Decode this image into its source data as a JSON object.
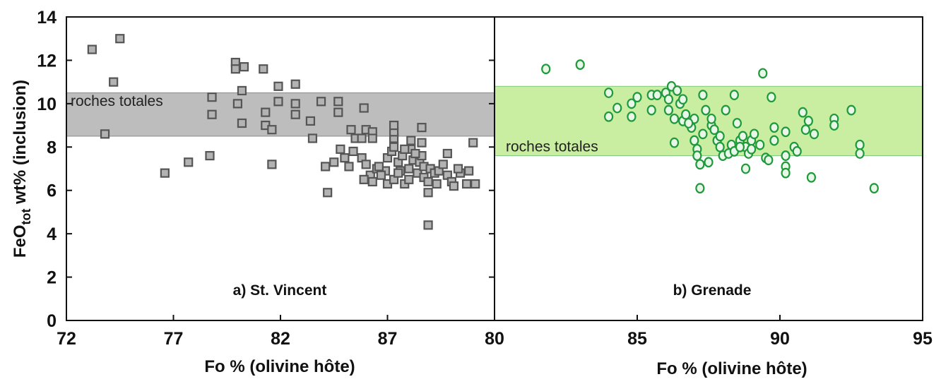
{
  "figure": {
    "ylabel": {
      "main": "FeO",
      "sub": "tot",
      "rest": " wt% (inclusion)"
    }
  },
  "chart_data": [
    {
      "type": "scatter",
      "panel_label": "a) St. Vincent",
      "xlabel": "Fo % (olivine hôte)",
      "xlim": [
        72,
        92
      ],
      "ylim": [
        0,
        14
      ],
      "x_ticks": [
        "72",
        "77",
        "82",
        "87"
      ],
      "y_ticks": [
        "0",
        "2",
        "4",
        "6",
        "8",
        "10",
        "12",
        "14"
      ],
      "marker": "square",
      "marker_color": "#555555",
      "marker_fill": "#b3b3b3",
      "band": {
        "label": "roches totales",
        "y_range": [
          8.5,
          10.5
        ],
        "color": "#bdbdbd"
      },
      "points": [
        [
          73.2,
          12.5
        ],
        [
          74.5,
          13.0
        ],
        [
          74.2,
          11.0
        ],
        [
          73.8,
          8.6
        ],
        [
          76.6,
          6.8
        ],
        [
          77.7,
          7.3
        ],
        [
          78.7,
          7.6
        ],
        [
          78.8,
          10.3
        ],
        [
          78.8,
          9.5
        ],
        [
          79.9,
          11.9
        ],
        [
          79.9,
          11.6
        ],
        [
          80.3,
          11.7
        ],
        [
          80.0,
          10.0
        ],
        [
          80.2,
          10.6
        ],
        [
          80.2,
          9.1
        ],
        [
          81.2,
          11.6
        ],
        [
          81.3,
          9.6
        ],
        [
          81.3,
          9.0
        ],
        [
          81.6,
          8.8
        ],
        [
          81.6,
          7.2
        ],
        [
          81.9,
          10.8
        ],
        [
          81.9,
          10.1
        ],
        [
          82.7,
          10.9
        ],
        [
          82.7,
          10.0
        ],
        [
          82.7,
          9.5
        ],
        [
          83.4,
          9.2
        ],
        [
          83.5,
          8.4
        ],
        [
          83.9,
          10.1
        ],
        [
          84.7,
          10.1
        ],
        [
          84.7,
          9.6
        ],
        [
          84.1,
          7.1
        ],
        [
          84.2,
          5.9
        ],
        [
          84.5,
          7.3
        ],
        [
          84.8,
          7.9
        ],
        [
          85.0,
          7.5
        ],
        [
          85.2,
          7.1
        ],
        [
          85.3,
          8.8
        ],
        [
          85.4,
          7.8
        ],
        [
          85.5,
          8.4
        ],
        [
          85.8,
          8.4
        ],
        [
          85.9,
          9.8
        ],
        [
          86.0,
          8.8
        ],
        [
          86.3,
          8.7
        ],
        [
          86.3,
          8.4
        ],
        [
          85.8,
          7.5
        ],
        [
          86.0,
          7.2
        ],
        [
          86.2,
          6.7
        ],
        [
          86.5,
          7.0
        ],
        [
          86.9,
          6.9
        ],
        [
          85.9,
          6.5
        ],
        [
          86.3,
          6.4
        ],
        [
          86.7,
          6.7
        ],
        [
          87.0,
          6.3
        ],
        [
          87.3,
          6.5
        ],
        [
          87.0,
          7.5
        ],
        [
          87.2,
          7.8
        ],
        [
          87.3,
          8.0
        ],
        [
          87.3,
          8.4
        ],
        [
          87.3,
          8.7
        ],
        [
          87.3,
          9.0
        ],
        [
          87.5,
          7.3
        ],
        [
          87.6,
          6.9
        ],
        [
          87.7,
          7.6
        ],
        [
          87.8,
          6.3
        ],
        [
          88.0,
          7.0
        ],
        [
          88.0,
          6.5
        ],
        [
          88.1,
          7.9
        ],
        [
          88.1,
          8.3
        ],
        [
          88.2,
          7.4
        ],
        [
          88.4,
          6.8
        ],
        [
          88.5,
          7.3
        ],
        [
          88.6,
          8.2
        ],
        [
          88.6,
          7.6
        ],
        [
          88.6,
          8.9
        ],
        [
          88.7,
          6.6
        ],
        [
          88.7,
          7.1
        ],
        [
          88.9,
          6.4
        ],
        [
          88.9,
          5.9
        ],
        [
          88.9,
          4.4
        ],
        [
          89.0,
          7.0
        ],
        [
          89.2,
          6.8
        ],
        [
          89.4,
          6.9
        ],
        [
          89.6,
          7.2
        ],
        [
          89.8,
          7.7
        ],
        [
          89.8,
          6.7
        ],
        [
          90.0,
          6.4
        ],
        [
          90.1,
          6.2
        ],
        [
          90.4,
          6.8
        ],
        [
          90.7,
          6.3
        ],
        [
          90.8,
          6.9
        ],
        [
          91.0,
          8.2
        ],
        [
          91.1,
          6.3
        ],
        [
          86.6,
          7.1
        ],
        [
          87.8,
          7.9
        ],
        [
          88.3,
          7.7
        ],
        [
          89.3,
          6.3
        ],
        [
          90.3,
          7.0
        ],
        [
          87.5,
          6.8
        ]
      ]
    },
    {
      "type": "scatter",
      "panel_label": "b) Grenade",
      "xlabel": "Fo % (olivine hôte)",
      "xlim": [
        80,
        95
      ],
      "ylim": [
        0,
        14
      ],
      "x_ticks": [
        "80",
        "85",
        "90",
        "95"
      ],
      "y_ticks": [],
      "marker": "circle",
      "marker_color": "#1e9a3a",
      "marker_fill": "#e9f7e9",
      "band": {
        "label": "roches totales",
        "y_range": [
          7.6,
          10.8
        ],
        "color": "#c9eea2"
      },
      "points": [
        [
          81.8,
          11.6
        ],
        [
          83.0,
          11.8
        ],
        [
          89.4,
          11.4
        ],
        [
          84.0,
          10.5
        ],
        [
          84.0,
          9.4
        ],
        [
          84.3,
          9.8
        ],
        [
          84.8,
          9.4
        ],
        [
          84.8,
          10.0
        ],
        [
          85.0,
          10.3
        ],
        [
          85.5,
          9.7
        ],
        [
          85.5,
          10.4
        ],
        [
          85.7,
          10.4
        ],
        [
          86.0,
          10.5
        ],
        [
          86.1,
          10.2
        ],
        [
          86.1,
          9.7
        ],
        [
          86.2,
          10.8
        ],
        [
          86.3,
          9.3
        ],
        [
          86.3,
          8.2
        ],
        [
          86.4,
          10.6
        ],
        [
          86.5,
          10.0
        ],
        [
          86.6,
          10.2
        ],
        [
          86.6,
          9.2
        ],
        [
          86.7,
          9.5
        ],
        [
          86.9,
          8.9
        ],
        [
          87.0,
          9.3
        ],
        [
          87.0,
          8.3
        ],
        [
          87.1,
          7.9
        ],
        [
          87.1,
          7.6
        ],
        [
          87.2,
          7.2
        ],
        [
          87.2,
          6.1
        ],
        [
          87.3,
          8.6
        ],
        [
          87.3,
          10.4
        ],
        [
          87.4,
          9.7
        ],
        [
          87.5,
          7.3
        ],
        [
          87.6,
          9.0
        ],
        [
          87.6,
          9.3
        ],
        [
          87.7,
          8.8
        ],
        [
          87.8,
          8.3
        ],
        [
          87.9,
          8.0
        ],
        [
          88.0,
          7.6
        ],
        [
          88.1,
          9.7
        ],
        [
          88.2,
          7.7
        ],
        [
          88.3,
          8.1
        ],
        [
          88.4,
          10.4
        ],
        [
          88.4,
          7.8
        ],
        [
          88.5,
          9.1
        ],
        [
          88.6,
          8.3
        ],
        [
          88.7,
          8.5
        ],
        [
          88.8,
          7.0
        ],
        [
          88.8,
          8.0
        ],
        [
          88.9,
          7.7
        ],
        [
          89.0,
          8.3
        ],
        [
          89.1,
          8.6
        ],
        [
          89.3,
          8.1
        ],
        [
          89.5,
          7.5
        ],
        [
          89.6,
          7.4
        ],
        [
          89.7,
          10.3
        ],
        [
          89.8,
          8.9
        ],
        [
          89.8,
          8.3
        ],
        [
          90.2,
          8.7
        ],
        [
          90.2,
          7.6
        ],
        [
          90.2,
          7.1
        ],
        [
          90.2,
          6.8
        ],
        [
          90.5,
          8.0
        ],
        [
          90.6,
          7.8
        ],
        [
          90.8,
          9.6
        ],
        [
          90.9,
          8.8
        ],
        [
          91.0,
          9.2
        ],
        [
          91.1,
          6.6
        ],
        [
          91.2,
          8.6
        ],
        [
          91.9,
          9.3
        ],
        [
          91.9,
          9.0
        ],
        [
          92.5,
          9.7
        ],
        [
          92.8,
          8.1
        ],
        [
          92.8,
          7.7
        ],
        [
          93.3,
          6.1
        ],
        [
          88.6,
          8.0
        ],
        [
          89.0,
          7.9
        ],
        [
          87.9,
          8.5
        ],
        [
          86.8,
          9.1
        ]
      ]
    }
  ]
}
